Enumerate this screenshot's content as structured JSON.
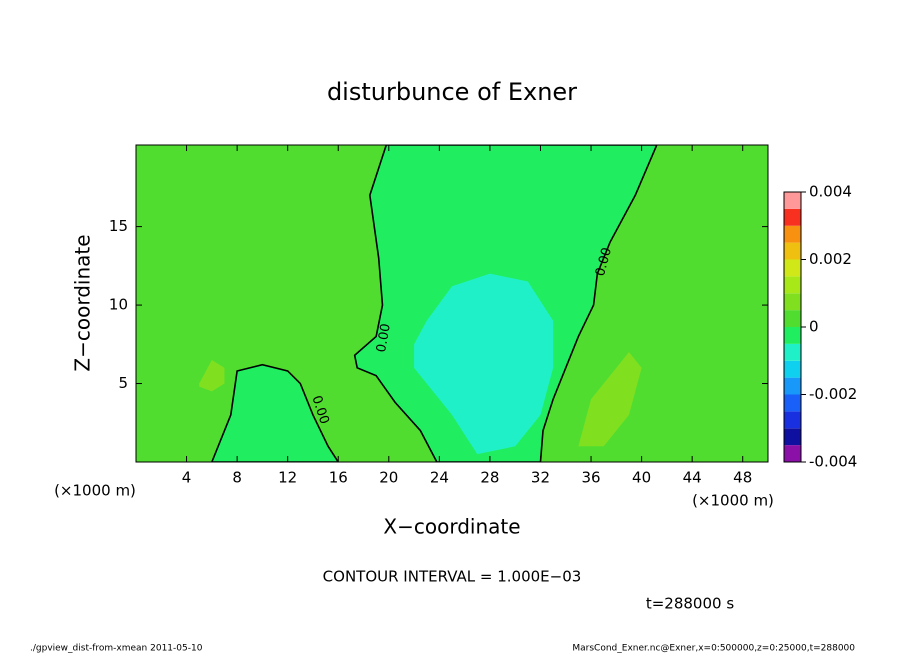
{
  "chart_data": {
    "type": "contour",
    "title": "disturbunce of Exner",
    "x_label": "X−coordinate",
    "y_label": "Z−coordinate",
    "x_unit": "(×1000 m)",
    "x_unit_right": "(×1000 m)",
    "xlim": [
      0,
      50
    ],
    "xticks": [
      4,
      8,
      12,
      16,
      20,
      24,
      28,
      32,
      36,
      40,
      44,
      48
    ],
    "ylim": [
      0,
      20.2
    ],
    "yticks": [
      5,
      10,
      15
    ],
    "colorbar": {
      "lim": [
        -0.004,
        0.004
      ],
      "ticks": [
        -0.004,
        -0.002,
        0,
        0.002,
        0.004
      ],
      "levels": [
        -0.004,
        -0.0035,
        -0.003,
        -0.0025,
        -0.002,
        -0.0015,
        -0.001,
        -0.0005,
        0,
        0.0005,
        0.001,
        0.0015,
        0.002,
        0.0025,
        0.003,
        0.0035,
        0.004
      ],
      "colors": [
        "#8a10a8",
        "#1010a0",
        "#1830e0",
        "#1860f8",
        "#1898f8",
        "#10d0f0",
        "#20f0c8",
        "#20ee60",
        "#50dd30",
        "#80e020",
        "#a8e818",
        "#d0e818",
        "#f0c010",
        "#f89010",
        "#f83020",
        "#ff9898"
      ]
    },
    "regions": [
      {
        "value": 0.0003,
        "outlined": false,
        "x": [
          0,
          50,
          50,
          0
        ],
        "z": [
          0,
          0,
          20.2,
          20.2
        ]
      },
      {
        "value": -0.0002,
        "outlined": true,
        "x": [
          23.8,
          22.5,
          20.5,
          19,
          17.5,
          17.3,
          19,
          19.5,
          19.2,
          18.5,
          19.8,
          41.2,
          39.5,
          37.5,
          36.5,
          36.2,
          35,
          34,
          33,
          32.2,
          32
        ],
        "z": [
          0,
          2,
          3.8,
          5.5,
          6,
          6.8,
          8,
          10,
          13,
          17,
          20.2,
          20.2,
          17,
          14,
          12,
          10,
          8,
          6,
          4,
          2,
          0
        ]
      },
      {
        "value": -0.0001,
        "outlined": true,
        "x": [
          6,
          7.5,
          8,
          10,
          12,
          13,
          14,
          15.2,
          16
        ],
        "z": [
          0,
          3,
          5.8,
          6.2,
          5.8,
          5,
          3,
          1,
          0
        ]
      },
      {
        "value": -0.0007,
        "outlined": false,
        "x": [
          22,
          23,
          25,
          28,
          31,
          33,
          33,
          32,
          30,
          27,
          25,
          22
        ],
        "z": [
          7.5,
          9,
          11.2,
          12,
          11.5,
          9,
          6,
          3,
          1,
          0.5,
          3,
          6
        ]
      },
      {
        "value": -0.0008,
        "outlined": false,
        "x": [
          24.5,
          25.5,
          27,
          29,
          30,
          30,
          28.5,
          27,
          25.5
        ],
        "z": [
          6,
          7.5,
          8,
          7.5,
          5,
          2.5,
          1,
          2,
          4
        ]
      },
      {
        "value": 0.0007,
        "outlined": false,
        "x": [
          5,
          6,
          7,
          7,
          6,
          5
        ],
        "z": [
          5,
          6.5,
          6,
          5,
          4.5,
          4.8
        ]
      },
      {
        "value": 0.0007,
        "outlined": false,
        "x": [
          36,
          38,
          39,
          40,
          39,
          37,
          35
        ],
        "z": [
          4,
          6,
          7,
          6,
          3,
          1,
          1
        ]
      }
    ],
    "contour_labels": [
      "0.00",
      "0.00",
      "0.00"
    ],
    "note": "CONTOUR INTERVAL = 1.000E−03",
    "time": "t=288000 s",
    "footer_left": "./gpview_dist-from-xmean  2011-05-10",
    "footer_right": "MarsCond_Exner.nc@Exner,x=0:500000,z=0:25000,t=288000"
  }
}
